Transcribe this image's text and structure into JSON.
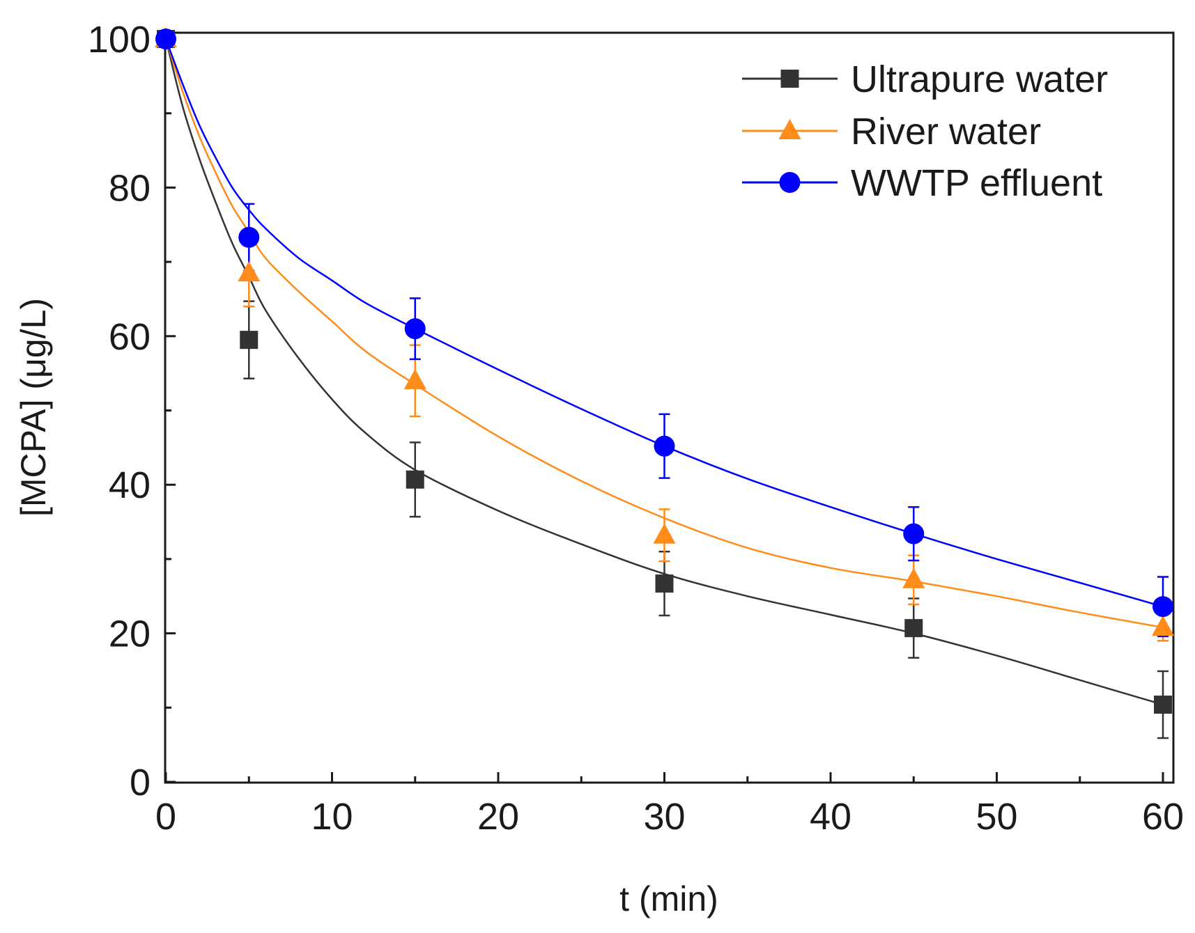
{
  "chart_data": {
    "type": "line",
    "title": "",
    "xlabel": "t (min)",
    "ylabel": "[MCPA] (μg/L)",
    "xlim": [
      0,
      61
    ],
    "ylim": [
      0,
      101
    ],
    "xticks": [
      0,
      10,
      20,
      30,
      40,
      50,
      60
    ],
    "yticks": [
      0,
      20,
      40,
      60,
      80,
      100
    ],
    "xtick_labels": [
      "0",
      "10",
      "20",
      "30",
      "40",
      "50",
      "60"
    ],
    "ytick_labels": [
      "0",
      "20",
      "40",
      "60",
      "80",
      "100"
    ],
    "grid": false,
    "legend_position": "top-right",
    "x": [
      0,
      5,
      15,
      30,
      45,
      60
    ],
    "series": [
      {
        "name": "Ultrapure water",
        "color": "#333333",
        "marker": "square",
        "values": [
          100,
          59.5,
          40.7,
          26.7,
          20.7,
          10.4
        ],
        "errors": [
          0,
          5.2,
          5.0,
          4.3,
          4.0,
          4.5
        ],
        "fit_x": [
          0,
          1,
          2,
          3,
          4,
          5,
          6,
          8,
          10,
          12,
          15,
          20,
          25,
          30,
          35,
          40,
          45,
          50,
          55,
          60
        ],
        "fit_y": [
          100,
          91,
          84,
          78,
          72.5,
          68,
          63.5,
          57,
          51.5,
          47,
          42,
          36.5,
          32,
          28,
          25,
          22.5,
          20,
          17,
          13.7,
          10.4
        ]
      },
      {
        "name": "River water",
        "color": "#ff8c1a",
        "marker": "triangle",
        "values": [
          100,
          68.5,
          54.0,
          33.2,
          27.2,
          20.8
        ],
        "errors": [
          0,
          4.5,
          4.8,
          3.5,
          3.3,
          1.8
        ],
        "fit_x": [
          0,
          1,
          2,
          3,
          4,
          5,
          6,
          8,
          10,
          12,
          15,
          20,
          25,
          30,
          35,
          40,
          45,
          50,
          55,
          60
        ],
        "fit_y": [
          100,
          93,
          87,
          82,
          77.5,
          74,
          70.5,
          66,
          62,
          58,
          53.5,
          46.5,
          40.5,
          35.5,
          31.5,
          28.8,
          27,
          25,
          22.8,
          20.8
        ]
      },
      {
        "name": "WWTP effluent",
        "color": "#0000ff",
        "marker": "circle",
        "values": [
          100,
          73.3,
          61.0,
          45.2,
          33.4,
          23.6
        ],
        "errors": [
          0,
          4.5,
          4.1,
          4.3,
          3.6,
          4.0
        ],
        "fit_x": [
          0,
          1,
          2,
          3,
          4,
          5,
          6,
          8,
          10,
          12,
          15,
          20,
          25,
          30,
          35,
          40,
          45,
          50,
          55,
          60
        ],
        "fit_y": [
          100,
          94,
          88.5,
          84,
          80,
          77,
          74.5,
          70.5,
          67.5,
          64.5,
          61,
          55.5,
          50.2,
          45.2,
          40.8,
          37,
          33.4,
          30,
          26.8,
          23.6
        ]
      }
    ]
  }
}
